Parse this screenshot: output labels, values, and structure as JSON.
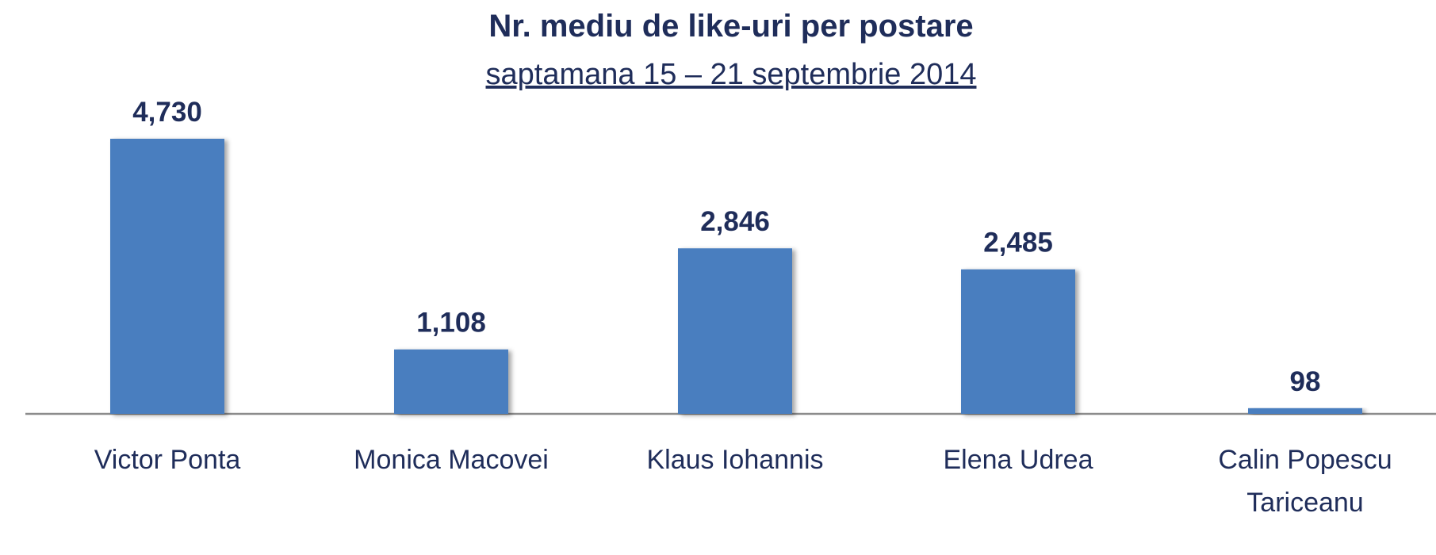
{
  "chart_data": {
    "type": "bar",
    "title": "Nr. mediu de like-uri  per postare",
    "subtitle": "saptamana 15 – 21 septembrie 2014",
    "categories": [
      "Victor Ponta",
      "Monica Macovei",
      "Klaus Iohannis",
      "Elena Udrea",
      "Calin Popescu Tariceanu"
    ],
    "values": [
      4730,
      1108,
      2846,
      2485,
      98
    ],
    "value_labels": [
      "4,730",
      "1,108",
      "2,846",
      "2,485",
      "98"
    ],
    "color": "#4a7ebf"
  }
}
